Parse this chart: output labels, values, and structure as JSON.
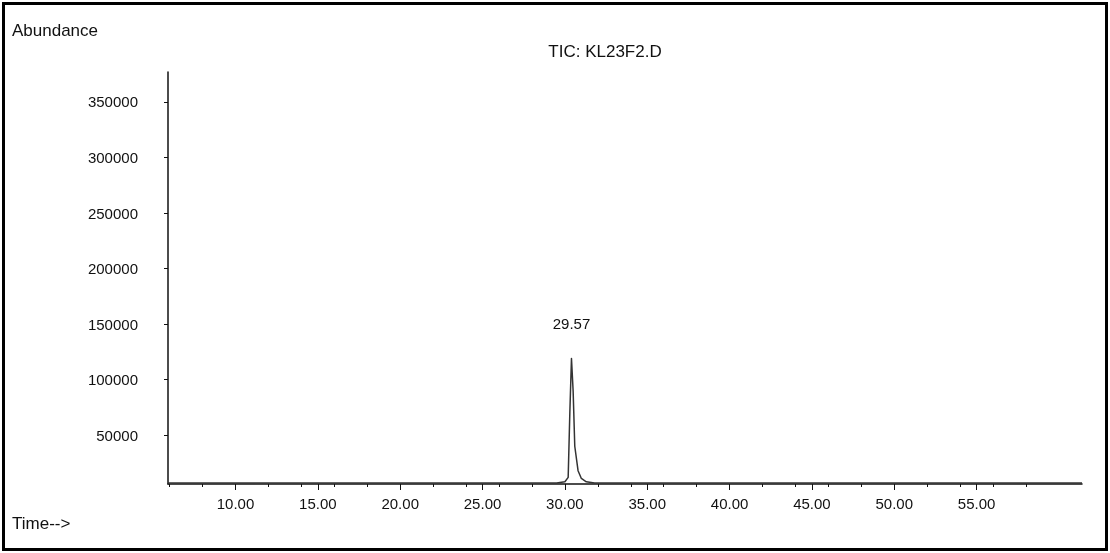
{
  "chart_data": {
    "type": "line",
    "title": "TIC: KL23F2.D",
    "xlabel": "Time-->",
    "ylabel": "Abundance",
    "x": [
      5.9,
      15,
      25,
      29.5,
      30.0,
      30.2,
      30.3,
      30.4,
      30.5,
      30.6,
      30.8,
      31.0,
      31.3,
      31.8,
      40,
      50,
      61.4
    ],
    "series": [
      {
        "color": "#333333",
        "values": [
          7000,
          7000,
          7000,
          7000,
          8000,
          12000,
          70000,
          119000,
          90000,
          40000,
          18000,
          11000,
          8000,
          7000,
          7000,
          7000,
          7000
        ]
      }
    ],
    "xlim": [
      5.9,
      61.4
    ],
    "ylim": [
      6000,
      377000
    ],
    "xticks": [
      {
        "value": 10,
        "label": "10.00"
      },
      {
        "value": 15,
        "label": "15.00"
      },
      {
        "value": 20,
        "label": "20.00"
      },
      {
        "value": 25,
        "label": "25.00"
      },
      {
        "value": 30,
        "label": "30.00"
      },
      {
        "value": 35,
        "label": "35.00"
      },
      {
        "value": 40,
        "label": "40.00"
      },
      {
        "value": 45,
        "label": "45.00"
      },
      {
        "value": 50,
        "label": "50.00"
      },
      {
        "value": 55,
        "label": "55.00"
      }
    ],
    "yticks": [
      50000,
      100000,
      150000,
      200000,
      250000,
      300000,
      350000
    ],
    "annotations": [
      {
        "text": "29.57",
        "x": 30.4,
        "y": 119000
      }
    ],
    "grid": false,
    "marker": "none",
    "line_style": "solid"
  }
}
